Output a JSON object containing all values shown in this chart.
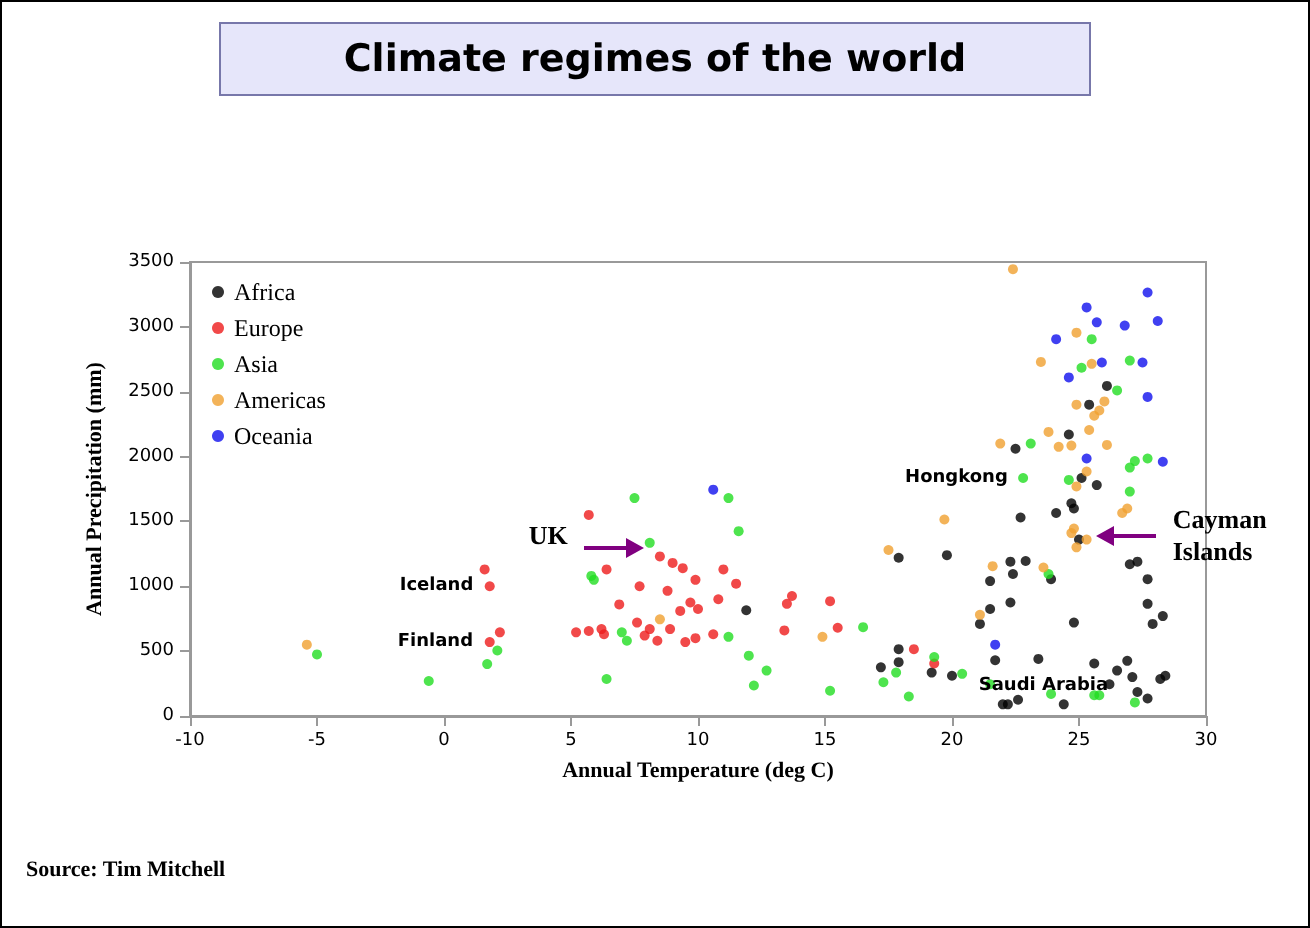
{
  "chart_data": {
    "type": "scatter",
    "title": "Climate regimes of the world",
    "xlabel": "Annual Temperature (deg C)",
    "ylabel": "Annual Precipitation (mm)",
    "xlim": [
      -10,
      30
    ],
    "xticks": [
      -10,
      -5,
      0,
      5,
      10,
      15,
      20,
      25,
      30
    ],
    "ylim": [
      0,
      3500
    ],
    "yticks": [
      0,
      500,
      1000,
      1500,
      2000,
      2500,
      3000,
      3500
    ],
    "grid": false,
    "legend": "top left",
    "marker": "circle",
    "series": [
      {
        "name": "Africa",
        "color": "#000000",
        "x": [
          11.9,
          17.9,
          17.2,
          17.9,
          22.5,
          26.1,
          25.4,
          24.6,
          25.1,
          25.7,
          22.7,
          24.1,
          24.7,
          24.8,
          25.0,
          19.8,
          22.3,
          22.9,
          23.9,
          21.5,
          22.4,
          27.0,
          27.3,
          27.7,
          22.3,
          21.5,
          21.1,
          24.8,
          27.7,
          27.9,
          28.3,
          17.9,
          19.2,
          20.0,
          21.7,
          23.4,
          25.6,
          26.9,
          27.1,
          26.5,
          28.2,
          28.4,
          22.0,
          22.2,
          22.6,
          24.4,
          27.3,
          27.7,
          26.2
        ],
        "values": [
          815,
          1220,
          375,
          415,
          2060,
          2545,
          2400,
          2170,
          1835,
          1780,
          1530,
          1565,
          1640,
          1600,
          1360,
          1240,
          1190,
          1195,
          1055,
          1040,
          1095,
          1170,
          1190,
          1055,
          875,
          825,
          710,
          720,
          865,
          710,
          770,
          515,
          335,
          310,
          430,
          440,
          405,
          425,
          300,
          350,
          285,
          310,
          90,
          90,
          125,
          90,
          185,
          135,
          245
        ]
      },
      {
        "name": "Europe",
        "color": "#ee1c1c",
        "x": [
          5.7,
          1.6,
          1.8,
          1.8,
          2.2,
          5.2,
          8.5,
          9.0,
          9.4,
          9.9,
          11.0,
          6.4,
          7.7,
          8.8,
          11.5,
          6.9,
          9.7,
          9.3,
          10.0,
          10.8,
          13.7,
          13.5,
          15.2,
          7.6,
          8.1,
          8.9,
          5.7,
          6.2,
          6.3,
          7.9,
          8.4,
          9.5,
          9.9,
          10.6,
          13.4,
          15.5,
          18.5,
          19.3
        ],
        "values": [
          1550,
          1130,
          1000,
          570,
          645,
          645,
          1230,
          1180,
          1140,
          1050,
          1130,
          1130,
          1000,
          965,
          1020,
          860,
          875,
          810,
          825,
          900,
          925,
          865,
          885,
          720,
          670,
          670,
          655,
          670,
          630,
          620,
          580,
          570,
          600,
          630,
          660,
          680,
          515,
          405
        ]
      },
      {
        "name": "Asia",
        "color": "#22dd22",
        "x": [
          5.8,
          5.9,
          2.1,
          1.7,
          -0.6,
          -5.0,
          7.5,
          11.2,
          11.6,
          8.1,
          7.0,
          7.2,
          11.2,
          16.5,
          12.0,
          12.7,
          12.2,
          6.4,
          15.2,
          17.3,
          17.8,
          25.5,
          25.1,
          27.0,
          26.5,
          23.1,
          27.2,
          27.7,
          27.0,
          22.8,
          24.6,
          27.0,
          23.8,
          19.3,
          20.4,
          18.3,
          21.5,
          23.9,
          25.6,
          25.8,
          27.2
        ],
        "values": [
          1080,
          1050,
          505,
          400,
          270,
          475,
          1680,
          1680,
          1425,
          1335,
          645,
          580,
          610,
          685,
          465,
          350,
          235,
          285,
          195,
          260,
          335,
          2905,
          2685,
          2740,
          2510,
          2100,
          1965,
          1985,
          1915,
          1835,
          1820,
          1730,
          1095,
          455,
          325,
          150,
          245,
          170,
          160,
          160,
          105
        ]
      },
      {
        "name": "Americas",
        "color": "#f0a030",
        "x": [
          -5.4,
          8.5,
          17.5,
          14.9,
          22.4,
          24.9,
          23.5,
          25.5,
          26.0,
          24.9,
          25.8,
          25.6,
          25.4,
          23.8,
          24.7,
          26.1,
          21.9,
          24.2,
          25.3,
          24.9,
          19.7,
          26.7,
          26.9,
          24.8,
          24.7,
          24.9,
          25.3,
          21.6,
          23.6,
          21.1
        ],
        "values": [
          550,
          745,
          1280,
          610,
          3445,
          2955,
          2730,
          2715,
          2425,
          2400,
          2355,
          2315,
          2205,
          2190,
          2085,
          2090,
          2100,
          2075,
          1885,
          1770,
          1515,
          1565,
          1600,
          1445,
          1410,
          1300,
          1360,
          1155,
          1145,
          780
        ]
      },
      {
        "name": "Oceania",
        "color": "#1010ee",
        "x": [
          10.6,
          27.7,
          25.3,
          25.7,
          26.8,
          28.1,
          24.1,
          25.9,
          27.5,
          24.6,
          27.7,
          28.3,
          25.3,
          21.7
        ],
        "values": [
          1745,
          3265,
          3150,
          3035,
          3010,
          3045,
          2905,
          2725,
          2725,
          2610,
          2460,
          1960,
          1985,
          550
        ]
      }
    ],
    "annotations": [
      {
        "text": "Iceland",
        "x": 1.8,
        "y": 1000
      },
      {
        "text": "Finland",
        "x": 1.8,
        "y": 570
      },
      {
        "text": "Hongkong",
        "x": 22.8,
        "y": 1835
      },
      {
        "text": "Saudi Arabia",
        "x": 24.4,
        "y": 90
      },
      {
        "text": "UK",
        "x": 7.9,
        "y": 1290
      },
      {
        "text": "Cayman Islands",
        "x": 25.7,
        "y": 1380
      },
      "Source: Tim Mitchell"
    ]
  }
}
